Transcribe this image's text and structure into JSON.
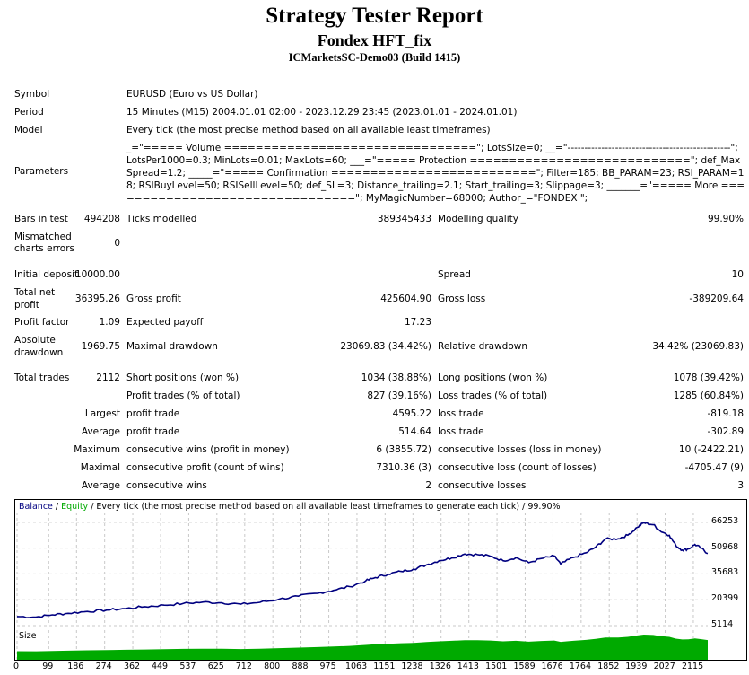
{
  "header": {
    "title": "Strategy Tester Report",
    "expert": "Fondex HFT_fix",
    "server": "ICMarketsSC-Demo03 (Build 1415)"
  },
  "settings": {
    "symbol_label": "Symbol",
    "symbol_value": "EURUSD (Euro vs US Dollar)",
    "period_label": "Period",
    "period_value": "15 Minutes (M15) 2004.01.01 02:00 - 2023.12.29 23:45 (2023.01.01 - 2024.01.01)",
    "model_label": "Model",
    "model_value": "Every tick (the most precise method based on all available least timeframes)",
    "parameters_label": "Parameters",
    "parameters_value": "_=\"===== Volume ================================\"; LotsSize=0; __=\"------------------------------------------------\"; LotsPer1000=0.3; MinLots=0.01; MaxLots=60; ___=\"===== Protection ============================\"; def_MaxSpread=1.2; _____=\"===== Confirmation ==========================\"; Filter=185; BB_PARAM=23; RSI_PARAM=18; RSIBuyLevel=50; RSISellLevel=50; def_SL=3; Distance_trailing=2.1; Start_trailing=3; Slippage=3; _______=\"===== More ================================\"; MyMagicNumber=68000; Author_=\"FONDEX \";"
  },
  "stats": {
    "bars_label": "Bars in test",
    "bars_value": "494208",
    "ticks_label": "Ticks modelled",
    "ticks_value": "389345433",
    "quality_label": "Modelling quality",
    "quality_value": "99.90%",
    "mismatched_label_1": "Mismatched",
    "mismatched_label_2": "charts errors",
    "mismatched_value": "0",
    "deposit_label": "Initial deposit",
    "deposit_value": "10000.00",
    "spread_label": "Spread",
    "spread_value": "10",
    "netprofit_label_1": "Total net",
    "netprofit_label_2": "profit",
    "netprofit_value": "36395.26",
    "grossprofit_label": "Gross profit",
    "grossprofit_value": "425604.90",
    "grossloss_label": "Gross loss",
    "grossloss_value": "-389209.64",
    "pf_label": "Profit factor",
    "pf_value": "1.09",
    "expected_label": "Expected payoff",
    "expected_value": "17.23",
    "absdd_label_1": "Absolute",
    "absdd_label_2": "drawdown",
    "absdd_value": "1969.75",
    "maxdd_label": "Maximal drawdown",
    "maxdd_value": "23069.83 (34.42%)",
    "reldd_label": "Relative drawdown",
    "reldd_value": "34.42% (23069.83)",
    "trades_label": "Total trades",
    "trades_value": "2112",
    "short_label": "Short positions (won %)",
    "short_value": "1034 (38.88%)",
    "long_label": "Long positions (won %)",
    "long_value": "1078 (39.42%)",
    "pt_label": "Profit trades (% of total)",
    "pt_value": "827 (39.16%)",
    "lt_label": "Loss trades (% of total)",
    "lt_value": "1285 (60.84%)",
    "largest_label": "Largest",
    "largest_pt_label": "profit trade",
    "largest_pt_value": "4595.22",
    "largest_lt_label": "loss trade",
    "largest_lt_value": "-819.18",
    "average_label": "Average",
    "average_pt_label": "profit trade",
    "average_pt_value": "514.64",
    "average_lt_label": "loss trade",
    "average_lt_value": "-302.89",
    "maximum_label": "Maximum",
    "maxwins_label": "consecutive wins (profit in money)",
    "maxwins_value": "6 (3855.72)",
    "maxlosses_label": "consecutive losses (loss in money)",
    "maxlosses_value": "10 (-2422.21)",
    "maximal_label": "Maximal",
    "maxprofit_label": "consecutive profit (count of wins)",
    "maxprofit_value": "7310.36 (3)",
    "maxloss_label": "consecutive loss (count of losses)",
    "maxloss_value": "-4705.47 (9)",
    "avgcons_label": "Average",
    "avgwins_label": "consecutive wins",
    "avgwins_value": "2",
    "avglosses_label": "consecutive losses",
    "avglosses_value": "3"
  },
  "chart_data": {
    "type": "line",
    "legend_balance": "Balance",
    "legend_sep": " / ",
    "legend_equity": "Equity",
    "legend_rest": " / Every tick (the most precise method based on all available least timeframes to generate each tick) / 99.90%",
    "size_label": "Size",
    "y_ticks": [
      66253,
      50968,
      35683,
      20399,
      5114
    ],
    "x_ticks": [
      0,
      99,
      186,
      274,
      362,
      449,
      537,
      625,
      712,
      800,
      888,
      975,
      1063,
      1151,
      1238,
      1326,
      1413,
      1501,
      1589,
      1676,
      1764,
      1852,
      1939,
      2027,
      2115
    ],
    "xlim": [
      0,
      2160
    ],
    "ylim": [
      5114,
      72000
    ],
    "series": [
      {
        "name": "Balance",
        "color": "#000080",
        "points": [
          [
            0,
            10500
          ],
          [
            60,
            10200
          ],
          [
            110,
            11500
          ],
          [
            160,
            12400
          ],
          [
            220,
            13500
          ],
          [
            280,
            14300
          ],
          [
            340,
            15200
          ],
          [
            400,
            16300
          ],
          [
            460,
            17200
          ],
          [
            520,
            18200
          ],
          [
            580,
            19000
          ],
          [
            640,
            18600
          ],
          [
            700,
            17800
          ],
          [
            760,
            18900
          ],
          [
            820,
            20800
          ],
          [
            880,
            22500
          ],
          [
            940,
            24300
          ],
          [
            990,
            26000
          ],
          [
            1040,
            28200
          ],
          [
            1090,
            31500
          ],
          [
            1120,
            33500
          ],
          [
            1160,
            35500
          ],
          [
            1200,
            37200
          ],
          [
            1240,
            38500
          ],
          [
            1280,
            41000
          ],
          [
            1320,
            43500
          ],
          [
            1360,
            45200
          ],
          [
            1400,
            47500
          ],
          [
            1440,
            47100
          ],
          [
            1480,
            46200
          ],
          [
            1520,
            43500
          ],
          [
            1560,
            45300
          ],
          [
            1600,
            42300
          ],
          [
            1640,
            44800
          ],
          [
            1680,
            46300
          ],
          [
            1700,
            41600
          ],
          [
            1740,
            45400
          ],
          [
            1780,
            48200
          ],
          [
            1810,
            51600
          ],
          [
            1840,
            56300
          ],
          [
            1880,
            56500
          ],
          [
            1910,
            58600
          ],
          [
            1940,
            63300
          ],
          [
            1960,
            66000
          ],
          [
            1990,
            64800
          ],
          [
            2010,
            61300
          ],
          [
            2040,
            58500
          ],
          [
            2060,
            52500
          ],
          [
            2080,
            49800
          ],
          [
            2100,
            50500
          ],
          [
            2120,
            53100
          ],
          [
            2140,
            50800
          ],
          [
            2160,
            47800
          ]
        ]
      },
      {
        "name": "Equity",
        "color": "#00aa00",
        "points": []
      }
    ],
    "size_color": "#00aa00"
  }
}
